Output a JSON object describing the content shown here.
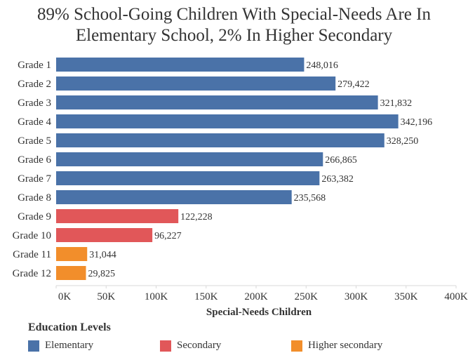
{
  "title_line1": "89% School-Going Children With Special-Needs Are In",
  "title_line2": "Elementary School, 2% In Higher Secondary",
  "chart_data": {
    "type": "bar",
    "orientation": "horizontal",
    "categories": [
      "Grade 1",
      "Grade 2",
      "Grade 3",
      "Grade 4",
      "Grade 5",
      "Grade 6",
      "Grade 7",
      "Grade 8",
      "Grade 9",
      "Grade 10",
      "Grade 11",
      "Grade 12"
    ],
    "values": [
      248016,
      279422,
      321832,
      342196,
      328250,
      266865,
      263382,
      235568,
      122228,
      96227,
      31044,
      29825
    ],
    "value_labels": [
      "248,016",
      "279,422",
      "321,832",
      "342,196",
      "328,250",
      "266,865",
      "263,382",
      "235,568",
      "122,228",
      "96,227",
      "31,044",
      "29,825"
    ],
    "levels": [
      "Elementary",
      "Elementary",
      "Elementary",
      "Elementary",
      "Elementary",
      "Elementary",
      "Elementary",
      "Elementary",
      "Secondary",
      "Secondary",
      "Higher secondary",
      "Higher secondary"
    ],
    "xlabel": "Special-Needs Children",
    "xlim": [
      0,
      400000
    ],
    "x_ticks": [
      0,
      50000,
      100000,
      150000,
      200000,
      250000,
      300000,
      350000,
      400000
    ],
    "x_tick_labels": [
      "0K",
      "50K",
      "100K",
      "150K",
      "200K",
      "250K",
      "300K",
      "350K",
      "400K"
    ],
    "grid": false
  },
  "legend": {
    "title": "Education Levels",
    "items": [
      {
        "label": "Elementary",
        "color": "#4a72a8"
      },
      {
        "label": "Secondary",
        "color": "#e15759"
      },
      {
        "label": "Higher secondary",
        "color": "#f28e2b"
      }
    ]
  }
}
